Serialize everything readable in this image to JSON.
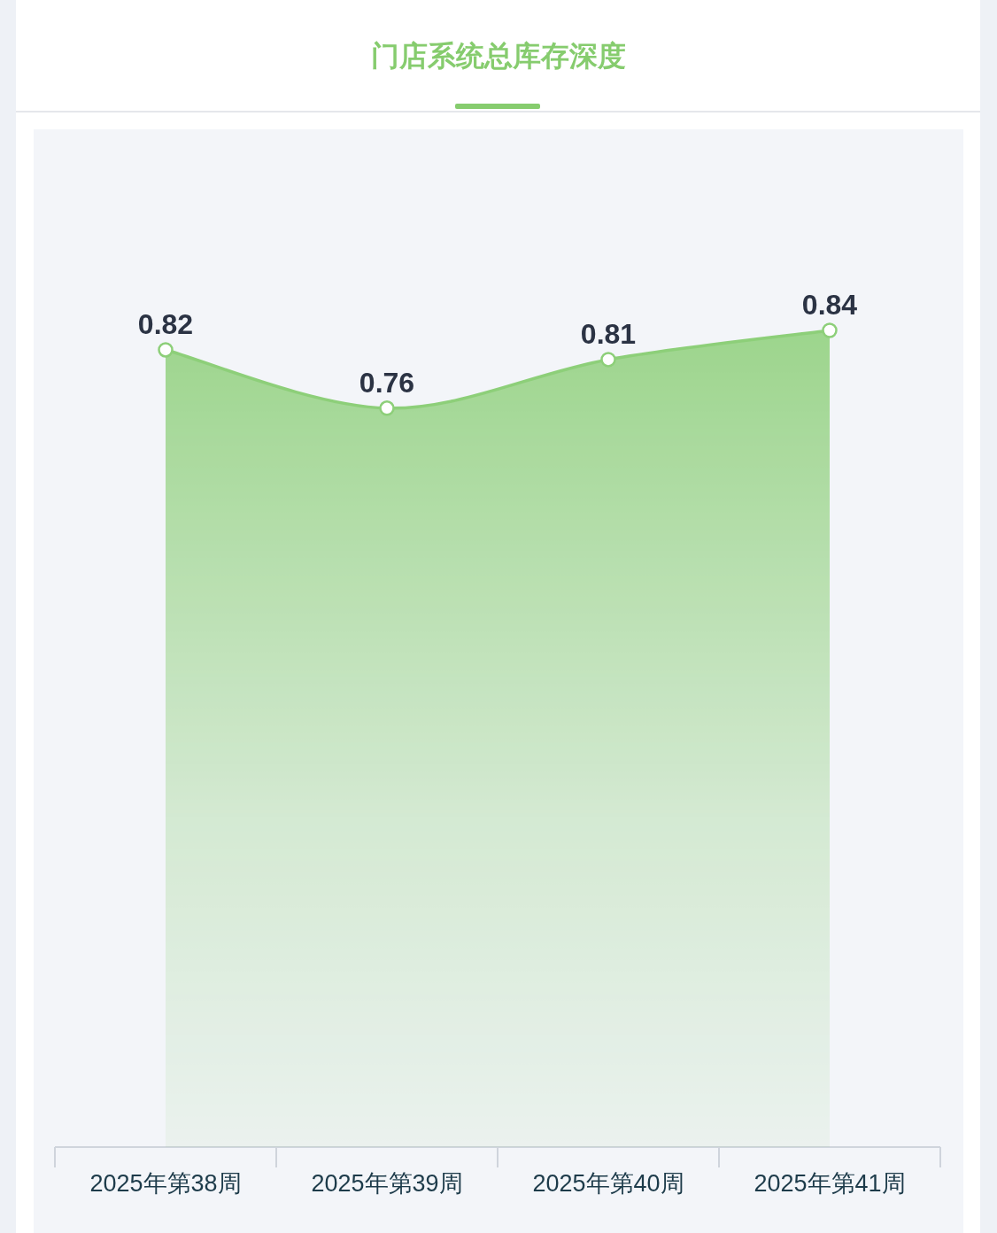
{
  "chart_data": {
    "type": "area",
    "title": "门店系统总库存深度",
    "categories": [
      "2025年第38周",
      "2025年第39周",
      "2025年第40周",
      "2025年第41周"
    ],
    "series": [
      {
        "color": "#8dcf79",
        "values": [
          0.82,
          0.76,
          0.81,
          0.84
        ]
      }
    ],
    "data_labels": true,
    "marker": "circle",
    "tick_labels": "x"
  }
}
